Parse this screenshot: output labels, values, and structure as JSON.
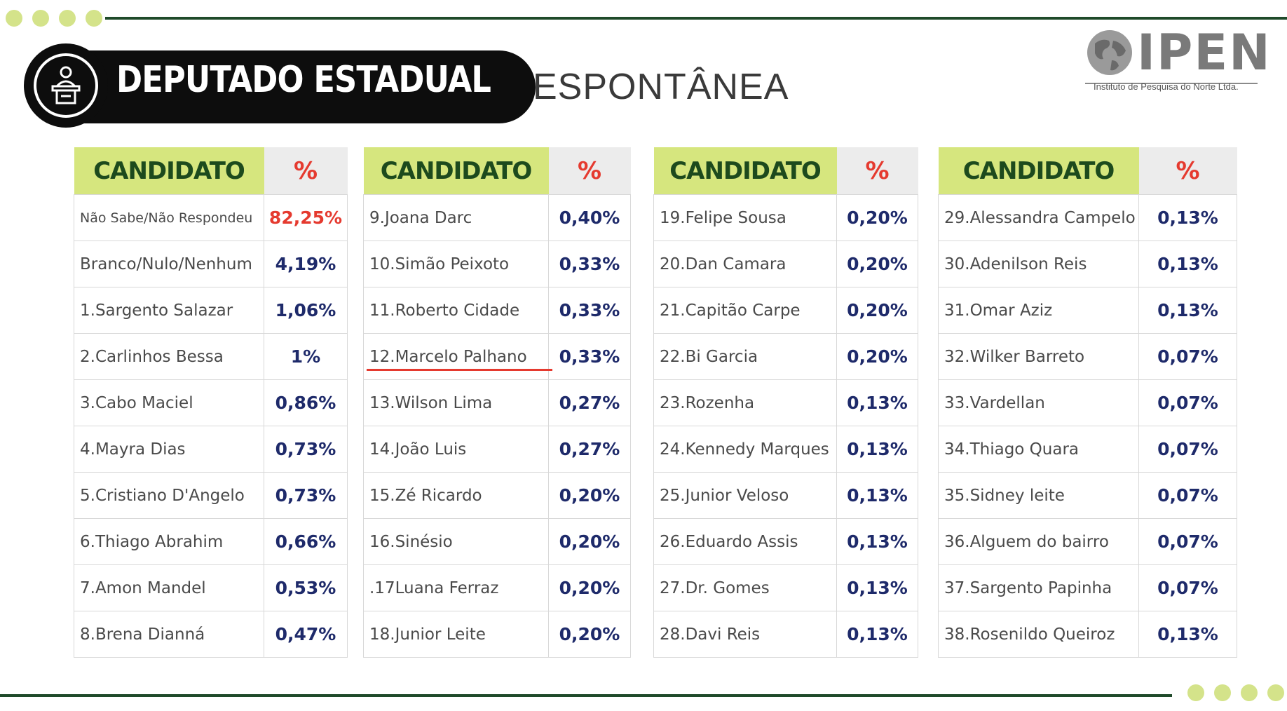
{
  "header": {
    "title": "DEPUTADO ESTADUAL",
    "subtitle": "ESPONTÂNEA",
    "logo_word": "IPEN",
    "logo_tagline": "Instituto de Pesquisa do Norte Ltda."
  },
  "colors": {
    "accent_green": "#d6e67e",
    "dark_green": "#1f4a2a",
    "red": "#e53a2f",
    "navy": "#1e2a6a"
  },
  "columns_header": {
    "name": "CANDIDATO",
    "pct": "%"
  },
  "tables": [
    {
      "rows": [
        {
          "name": "Não Sabe/Não Respondeu",
          "pct": "82,25%"
        },
        {
          "name": "Branco/Nulo/Nenhum",
          "pct": "4,19%"
        },
        {
          "name": "1.Sargento Salazar",
          "pct": "1,06%"
        },
        {
          "name": "2.Carlinhos Bessa",
          "pct": "1%"
        },
        {
          "name": "3.Cabo Maciel",
          "pct": "0,86%"
        },
        {
          "name": "4.Mayra Dias",
          "pct": "0,73%"
        },
        {
          "name": "5.Cristiano D'Angelo",
          "pct": "0,73%"
        },
        {
          "name": "6.Thiago Abrahim",
          "pct": "0,66%"
        },
        {
          "name": "7.Amon Mandel",
          "pct": "0,53%"
        },
        {
          "name": "8.Brena Dianná",
          "pct": "0,47%"
        }
      ]
    },
    {
      "rows": [
        {
          "name": "9.Joana Darc",
          "pct": "0,40%"
        },
        {
          "name": "10.Simão Peixoto",
          "pct": "0,33%"
        },
        {
          "name": "11.Roberto Cidade",
          "pct": "0,33%"
        },
        {
          "name": "12.Marcelo Palhano",
          "pct": "0,33%"
        },
        {
          "name": "13.Wilson Lima",
          "pct": "0,27%"
        },
        {
          "name": "14.João Luis",
          "pct": "0,27%"
        },
        {
          "name": "15.Zé Ricardo",
          "pct": "0,20%"
        },
        {
          "name": "16.Sinésio",
          "pct": "0,20%"
        },
        {
          "name": ".17Luana Ferraz",
          "pct": "0,20%"
        },
        {
          "name": "18.Junior Leite",
          "pct": "0,20%"
        }
      ]
    },
    {
      "rows": [
        {
          "name": "19.Felipe Sousa",
          "pct": "0,20%"
        },
        {
          "name": "20.Dan Camara",
          "pct": "0,20%"
        },
        {
          "name": "21.Capitão Carpe",
          "pct": "0,20%"
        },
        {
          "name": "22.Bi Garcia",
          "pct": "0,20%"
        },
        {
          "name": "23.Rozenha",
          "pct": "0,13%"
        },
        {
          "name": "24.Kennedy Marques",
          "pct": "0,13%"
        },
        {
          "name": " 25.Junior Veloso",
          "pct": "0,13%"
        },
        {
          "name": "26.Eduardo Assis",
          "pct": "0,13%"
        },
        {
          "name": "27.Dr. Gomes",
          "pct": "0,13%"
        },
        {
          "name": "28.Davi Reis",
          "pct": "0,13%"
        }
      ]
    },
    {
      "rows": [
        {
          "name": "29.Alessandra Campelo",
          "pct": "0,13%"
        },
        {
          "name": "30.Adenilson Reis",
          "pct": "0,13%"
        },
        {
          "name": "31.Omar Aziz",
          "pct": "0,13%"
        },
        {
          "name": "32.Wilker Barreto",
          "pct": "0,07%"
        },
        {
          "name": "33.Vardellan",
          "pct": "0,07%"
        },
        {
          "name": "34.Thiago Quara",
          "pct": "0,07%"
        },
        {
          "name": "35.Sidney leite",
          "pct": "0,07%"
        },
        {
          "name": "36.Alguem do bairro",
          "pct": "0,07%"
        },
        {
          "name": "37.Sargento Papinha",
          "pct": "0,07%"
        },
        {
          "name": "38.Rosenildo Queiroz",
          "pct": "0,13%"
        }
      ]
    }
  ]
}
